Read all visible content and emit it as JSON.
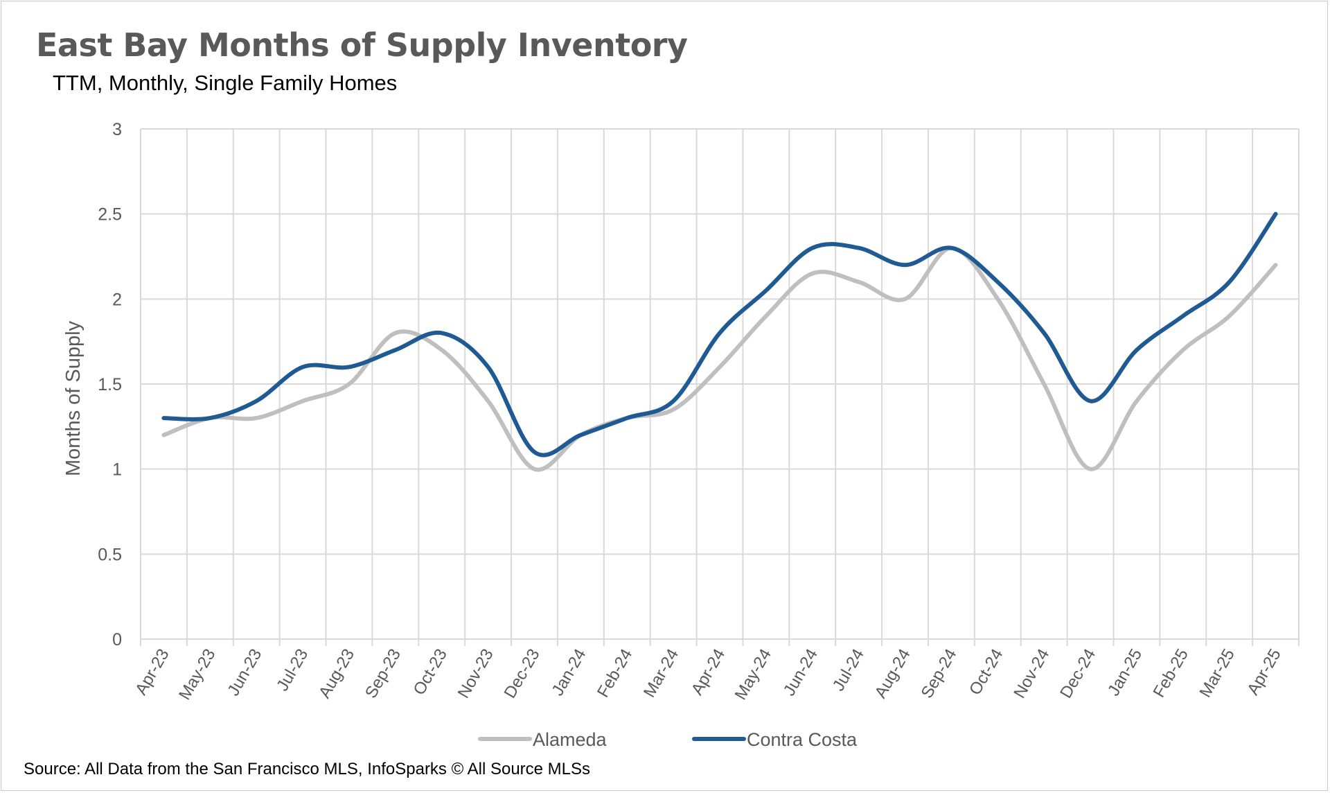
{
  "chart_data": {
    "type": "line",
    "title": "East Bay Months of Supply Inventory",
    "subtitle": "TTM, Monthly, Single Family Homes",
    "xlabel": "",
    "ylabel": "Months of Supply",
    "ylim": [
      0,
      3
    ],
    "yticks": [
      "0",
      "0.5",
      "1",
      "1.5",
      "2",
      "2.5",
      "3"
    ],
    "grid": true,
    "legend_position": "bottom",
    "categories": [
      "Apr-23",
      "May-23",
      "Jun-23",
      "Jul-23",
      "Aug-23",
      "Sep-23",
      "Oct-23",
      "Nov-23",
      "Dec-23",
      "Jan-24",
      "Feb-24",
      "Mar-24",
      "Apr-24",
      "May-24",
      "Jun-24",
      "Jul-24",
      "Aug-24",
      "Sep-24",
      "Oct-24",
      "Nov-24",
      "Dec-24",
      "Jan-25",
      "Feb-25",
      "Mar-25",
      "Apr-25"
    ],
    "series": [
      {
        "name": "Alameda",
        "color": "#bfbfbf",
        "values": [
          1.2,
          1.3,
          1.3,
          1.4,
          1.5,
          1.8,
          1.7,
          1.4,
          1.0,
          1.2,
          1.3,
          1.35,
          1.6,
          1.9,
          2.15,
          2.1,
          2.0,
          2.3,
          2.0,
          1.5,
          1.0,
          1.4,
          1.7,
          1.9,
          2.2
        ]
      },
      {
        "name": "Contra Costa",
        "color": "#1f5a93",
        "values": [
          1.3,
          1.3,
          1.4,
          1.6,
          1.6,
          1.7,
          1.8,
          1.6,
          1.1,
          1.2,
          1.3,
          1.4,
          1.8,
          2.05,
          2.3,
          2.3,
          2.2,
          2.3,
          2.1,
          1.8,
          1.4,
          1.7,
          1.9,
          2.1,
          2.5
        ]
      }
    ]
  },
  "source": "Source: All Data from the San Francisco MLS, InfoSparks © All Source MLSs"
}
